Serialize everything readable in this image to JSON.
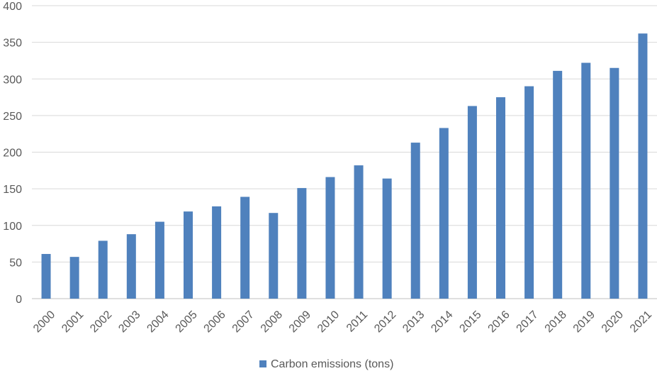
{
  "chart_data": {
    "type": "bar",
    "categories": [
      "2000",
      "2001",
      "2002",
      "2003",
      "2004",
      "2005",
      "2006",
      "2007",
      "2008",
      "2009",
      "2010",
      "2011",
      "2012",
      "2013",
      "2014",
      "2015",
      "2016",
      "2017",
      "2018",
      "2019",
      "2020",
      "2021"
    ],
    "series": [
      {
        "name": "Carbon emissions (tons)",
        "color": "#4f81bd",
        "values": [
          61,
          57,
          79,
          88,
          105,
          119,
          126,
          139,
          117,
          151,
          166,
          182,
          164,
          213,
          233,
          263,
          275,
          290,
          311,
          322,
          315,
          362
        ]
      }
    ],
    "ylim": [
      0,
      400
    ],
    "yticks": [
      "0",
      "50",
      "100",
      "150",
      "200",
      "250",
      "300",
      "350",
      "400"
    ],
    "grid": true,
    "legend_position": "bottom"
  }
}
